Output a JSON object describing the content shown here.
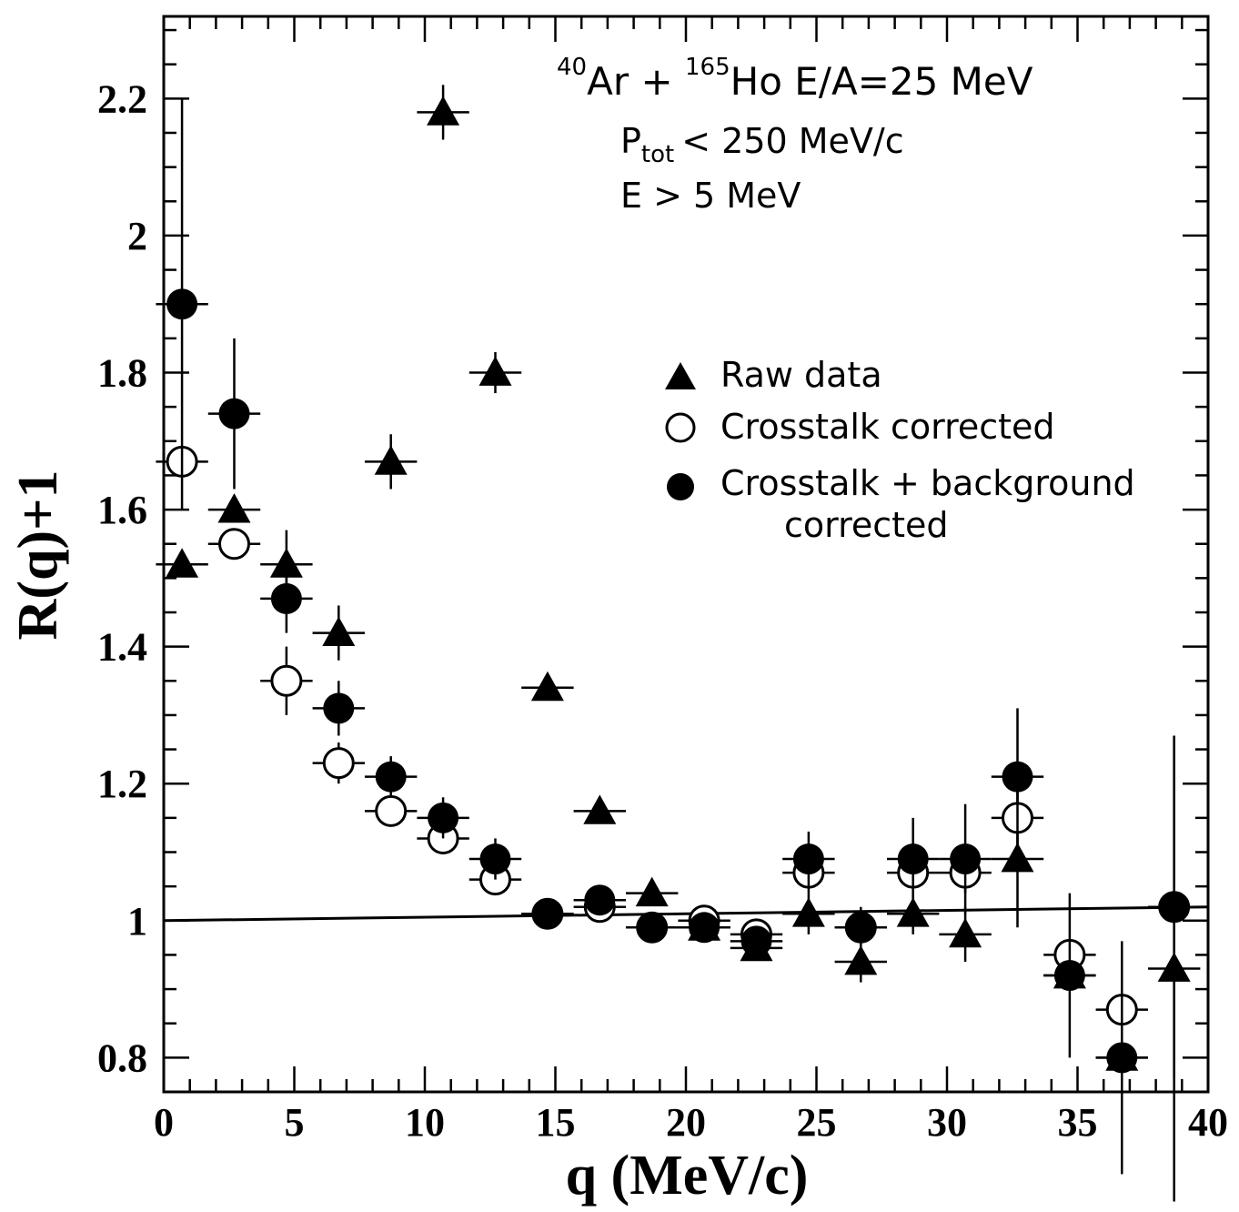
{
  "chart_data": {
    "type": "scatter",
    "xlabel": "q (MeV/c)",
    "ylabel": "R(q)+1",
    "xlim": [
      0,
      40
    ],
    "ylim": [
      0.75,
      2.32
    ],
    "x_ticks": [
      "0",
      "5",
      "10",
      "15",
      "20",
      "25",
      "30",
      "35",
      "40"
    ],
    "y_ticks": [
      "0.8",
      "1",
      "1.2",
      "1.4",
      "1.6",
      "1.8",
      "2",
      "2.2"
    ],
    "x_tick_values": [
      0,
      5,
      10,
      15,
      20,
      25,
      30,
      35,
      40
    ],
    "y_tick_values": [
      0.8,
      1.0,
      1.2,
      1.4,
      1.6,
      1.8,
      2.0,
      2.2
    ],
    "annotation": {
      "reaction_pre": "40",
      "reaction_a": "Ar + ",
      "reaction_mid": "165",
      "reaction_b": "Ho E/A=25 MeV",
      "ptot_main": "P",
      "ptot_sub": "tot",
      "ptot_rest": "< 250 MeV/c",
      "energy_cut": "E > 5 MeV"
    },
    "legend": {
      "raw": "Raw data",
      "crosstalk": "Crosstalk corrected",
      "full_line1": "Crosstalk + background",
      "full_line2": "corrected"
    },
    "reference_line": {
      "x": [
        0,
        40
      ],
      "y": [
        1.0,
        1.02
      ]
    },
    "series": [
      {
        "name": "Raw data",
        "marker": "triangle",
        "x": [
          0.7,
          2.7,
          4.7,
          6.7,
          8.7,
          10.7,
          12.7,
          14.7,
          16.7,
          18.7,
          20.7,
          22.7,
          24.7,
          26.7,
          28.7,
          30.7,
          32.7,
          34.7,
          36.7,
          38.7
        ],
        "y": [
          1.52,
          1.6,
          1.52,
          1.42,
          1.67,
          2.18,
          1.8,
          1.34,
          1.16,
          1.04,
          0.99,
          0.96,
          1.01,
          0.94,
          1.01,
          0.98,
          1.09,
          0.92,
          0.8,
          0.93
        ],
        "err": [
          0,
          0,
          0.05,
          0.04,
          0.04,
          0.04,
          0.03,
          0,
          0,
          0,
          0,
          0,
          0.03,
          0.03,
          0.03,
          0.04,
          0.1,
          0,
          0,
          0.34
        ]
      },
      {
        "name": "Crosstalk corrected",
        "marker": "open-circle",
        "x": [
          0.7,
          2.7,
          4.7,
          6.7,
          8.7,
          10.7,
          12.7,
          14.7,
          16.7,
          18.7,
          20.7,
          22.7,
          24.7,
          26.7,
          28.7,
          30.7,
          32.7,
          34.7,
          36.7,
          38.7
        ],
        "y": [
          1.67,
          1.55,
          1.35,
          1.23,
          1.16,
          1.12,
          1.06,
          1.01,
          1.02,
          0.99,
          1.0,
          0.98,
          1.07,
          0.99,
          1.07,
          1.07,
          1.15,
          0.95,
          0.87,
          1.02
        ],
        "err": [
          0,
          0,
          0.05,
          0.03,
          0.02,
          0.02,
          0.02,
          0,
          0,
          0,
          0,
          0,
          0.03,
          0.02,
          0.03,
          0.03,
          0.05,
          0,
          0,
          0
        ]
      },
      {
        "name": "Crosstalk + background corrected",
        "marker": "filled-circle",
        "x": [
          0.7,
          2.7,
          4.7,
          6.7,
          8.7,
          10.7,
          12.7,
          14.7,
          16.7,
          18.7,
          20.7,
          22.7,
          24.7,
          26.7,
          28.7,
          30.7,
          32.7,
          34.7,
          36.7,
          38.7
        ],
        "y": [
          1.9,
          1.74,
          1.47,
          1.31,
          1.21,
          1.15,
          1.09,
          1.01,
          1.03,
          0.99,
          0.99,
          0.97,
          1.09,
          0.99,
          1.09,
          1.09,
          1.21,
          0.92,
          0.8,
          1.02
        ],
        "err": [
          0.3,
          0.11,
          0.05,
          0.04,
          0.03,
          0.03,
          0.03,
          0.01,
          0.02,
          0.02,
          0.02,
          0.02,
          0.04,
          0.03,
          0.06,
          0.08,
          0.1,
          0.12,
          0.17,
          0.25
        ]
      }
    ]
  }
}
